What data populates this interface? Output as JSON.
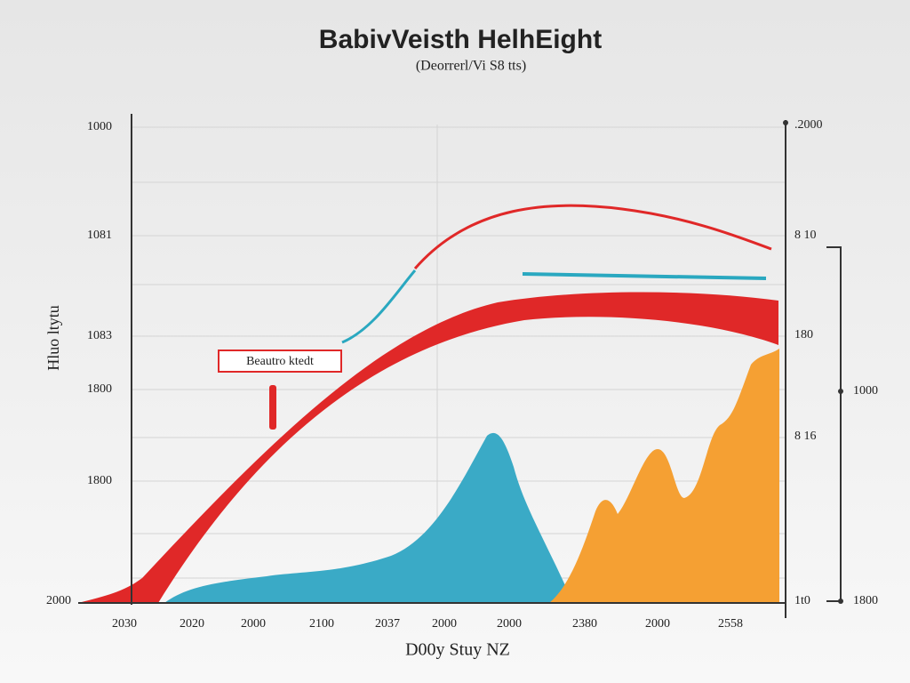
{
  "title": "BabivVeisth HelhEight",
  "subtitle": "(Deorrerl/Vi S8 tts)",
  "y_axis_label": "Hluo ltytu",
  "x_axis_label": "D00y Stuy NZ",
  "annotation": "Beautro ktedt",
  "left_ticks": [
    "1000",
    "1081",
    "1083",
    "1800",
    "1800",
    "2000"
  ],
  "right_ticks": [
    ".2000",
    "8 10",
    "180",
    "8 16",
    "1t0"
  ],
  "outer_right_ticks": [
    "1000",
    "1800"
  ],
  "x_ticks": [
    "2030",
    "2020",
    "2000",
    "2100",
    "2037",
    "2000",
    "2000",
    "2380",
    "2000",
    "2558"
  ]
}
